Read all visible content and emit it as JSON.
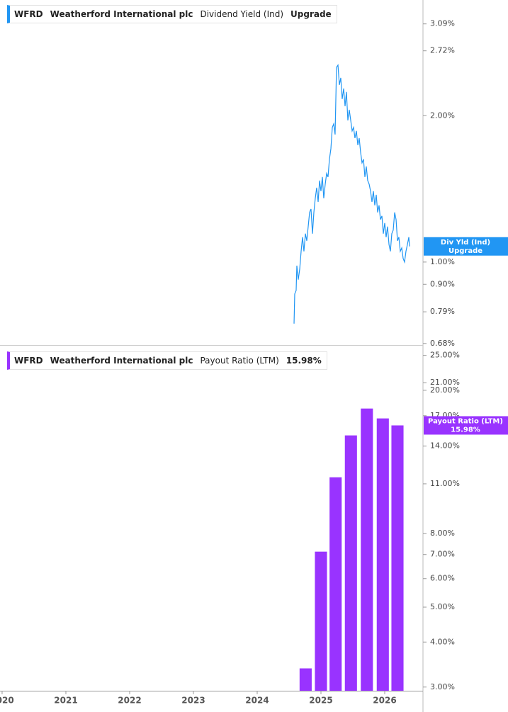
{
  "chart_data": [
    {
      "type": "line",
      "ticker": "WFRD",
      "company": "Weatherford International plc",
      "metric": "Dividend Yield (Ind)",
      "status": "Upgrade",
      "badge": "Div Yld (Ind)",
      "color": "#2196f3",
      "log_scale": true,
      "xlim": [
        2019.967,
        2026.6
      ],
      "ylim": [
        0.675,
        3.46
      ],
      "yticks": [
        {
          "value": 0.68,
          "label": "0.68%"
        },
        {
          "value": 0.79,
          "label": "0.79%"
        },
        {
          "value": 0.9,
          "label": "0.90%"
        },
        {
          "value": 1,
          "label": "1.00%"
        },
        {
          "value": 2,
          "label": "2.00%"
        },
        {
          "value": 2.72,
          "label": "2.72%"
        },
        {
          "value": 3.09,
          "label": "3.09%"
        }
      ],
      "x": [
        2024.578,
        2024.589,
        2024.611,
        2024.622,
        2024.644,
        2024.667,
        2024.689,
        2024.711,
        2024.733,
        2024.756,
        2024.778,
        2024.8,
        2024.822,
        2024.844,
        2024.867,
        2024.889,
        2024.911,
        2024.933,
        2024.956,
        2024.978,
        2025.0,
        2025.022,
        2025.044,
        2025.067,
        2025.089,
        2025.111,
        2025.133,
        2025.156,
        2025.178,
        2025.2,
        2025.222,
        2025.244,
        2025.267,
        2025.289,
        2025.311,
        2025.333,
        2025.356,
        2025.378,
        2025.4,
        2025.422,
        2025.444,
        2025.467,
        2025.489,
        2025.511,
        2025.533,
        2025.556,
        2025.578,
        2025.6,
        2025.622,
        2025.644,
        2025.667,
        2025.689,
        2025.711,
        2025.733,
        2025.756,
        2025.778,
        2025.8,
        2025.822,
        2025.844,
        2025.867,
        2025.889,
        2025.911,
        2025.933,
        2025.956,
        2025.978,
        2026.0,
        2026.022,
        2026.044,
        2026.067,
        2026.089,
        2026.111,
        2026.133,
        2026.156,
        2026.178,
        2026.2,
        2026.222,
        2026.244,
        2026.267,
        2026.289,
        2026.311,
        2026.333,
        2026.356,
        2026.378,
        2026.389
      ],
      "values": [
        0.747,
        0.86,
        0.874,
        0.983,
        0.92,
        0.967,
        1.052,
        1.125,
        1.052,
        1.144,
        1.106,
        1.183,
        1.265,
        1.286,
        1.144,
        1.265,
        1.353,
        1.422,
        1.33,
        1.471,
        1.399,
        1.496,
        1.353,
        1.446,
        1.521,
        1.496,
        1.627,
        1.711,
        1.892,
        1.924,
        1.83,
        2.516,
        2.542,
        2.314,
        2.393,
        2.164,
        2.275,
        2.092,
        2.238,
        1.956,
        2.057,
        1.956,
        1.861,
        1.892,
        1.799,
        1.861,
        1.74,
        1.799,
        1.682,
        1.6,
        1.627,
        1.496,
        1.573,
        1.471,
        1.446,
        1.399,
        1.33,
        1.399,
        1.308,
        1.375,
        1.265,
        1.308,
        1.223,
        1.244,
        1.144,
        1.203,
        1.125,
        1.183,
        1.087,
        1.052,
        1.144,
        1.163,
        1.265,
        1.223,
        1.106,
        1.125,
        1.052,
        1.069,
        1.017,
        1.0,
        1.052,
        1.087,
        1.125,
        1.077
      ]
    },
    {
      "type": "bar",
      "ticker": "WFRD",
      "company": "Weatherford International plc",
      "metric": "Payout Ratio (LTM)",
      "status": "15.98%",
      "badge": "Payout Ratio (LTM)",
      "color": "#9933ff",
      "log_scale": true,
      "xlim": [
        2019.967,
        2026.6
      ],
      "ylim": [
        2.93,
        26
      ],
      "xticks": [
        2020,
        2021,
        2022,
        2023,
        2024,
        2025,
        2026
      ],
      "yticks": [
        {
          "value": 3,
          "label": "3.00%"
        },
        {
          "value": 4,
          "label": "4.00%"
        },
        {
          "value": 5,
          "label": "5.00%"
        },
        {
          "value": 6,
          "label": "6.00%"
        },
        {
          "value": 7,
          "label": "7.00%"
        },
        {
          "value": 8,
          "label": "8.00%"
        },
        {
          "value": 11,
          "label": "11.00%"
        },
        {
          "value": 14,
          "label": "14.00%"
        },
        {
          "value": 17,
          "label": "17.00%"
        },
        {
          "value": 20,
          "label": "20.00%"
        },
        {
          "value": 21,
          "label": "21.00%"
        },
        {
          "value": 25,
          "label": "25.00%"
        }
      ],
      "x": [
        2024.76,
        2025.0,
        2025.23,
        2025.47,
        2025.72,
        2025.97,
        2026.2
      ],
      "values": [
        3.38,
        7.13,
        11.47,
        14.99,
        17.8,
        16.71,
        15.98
      ]
    }
  ]
}
